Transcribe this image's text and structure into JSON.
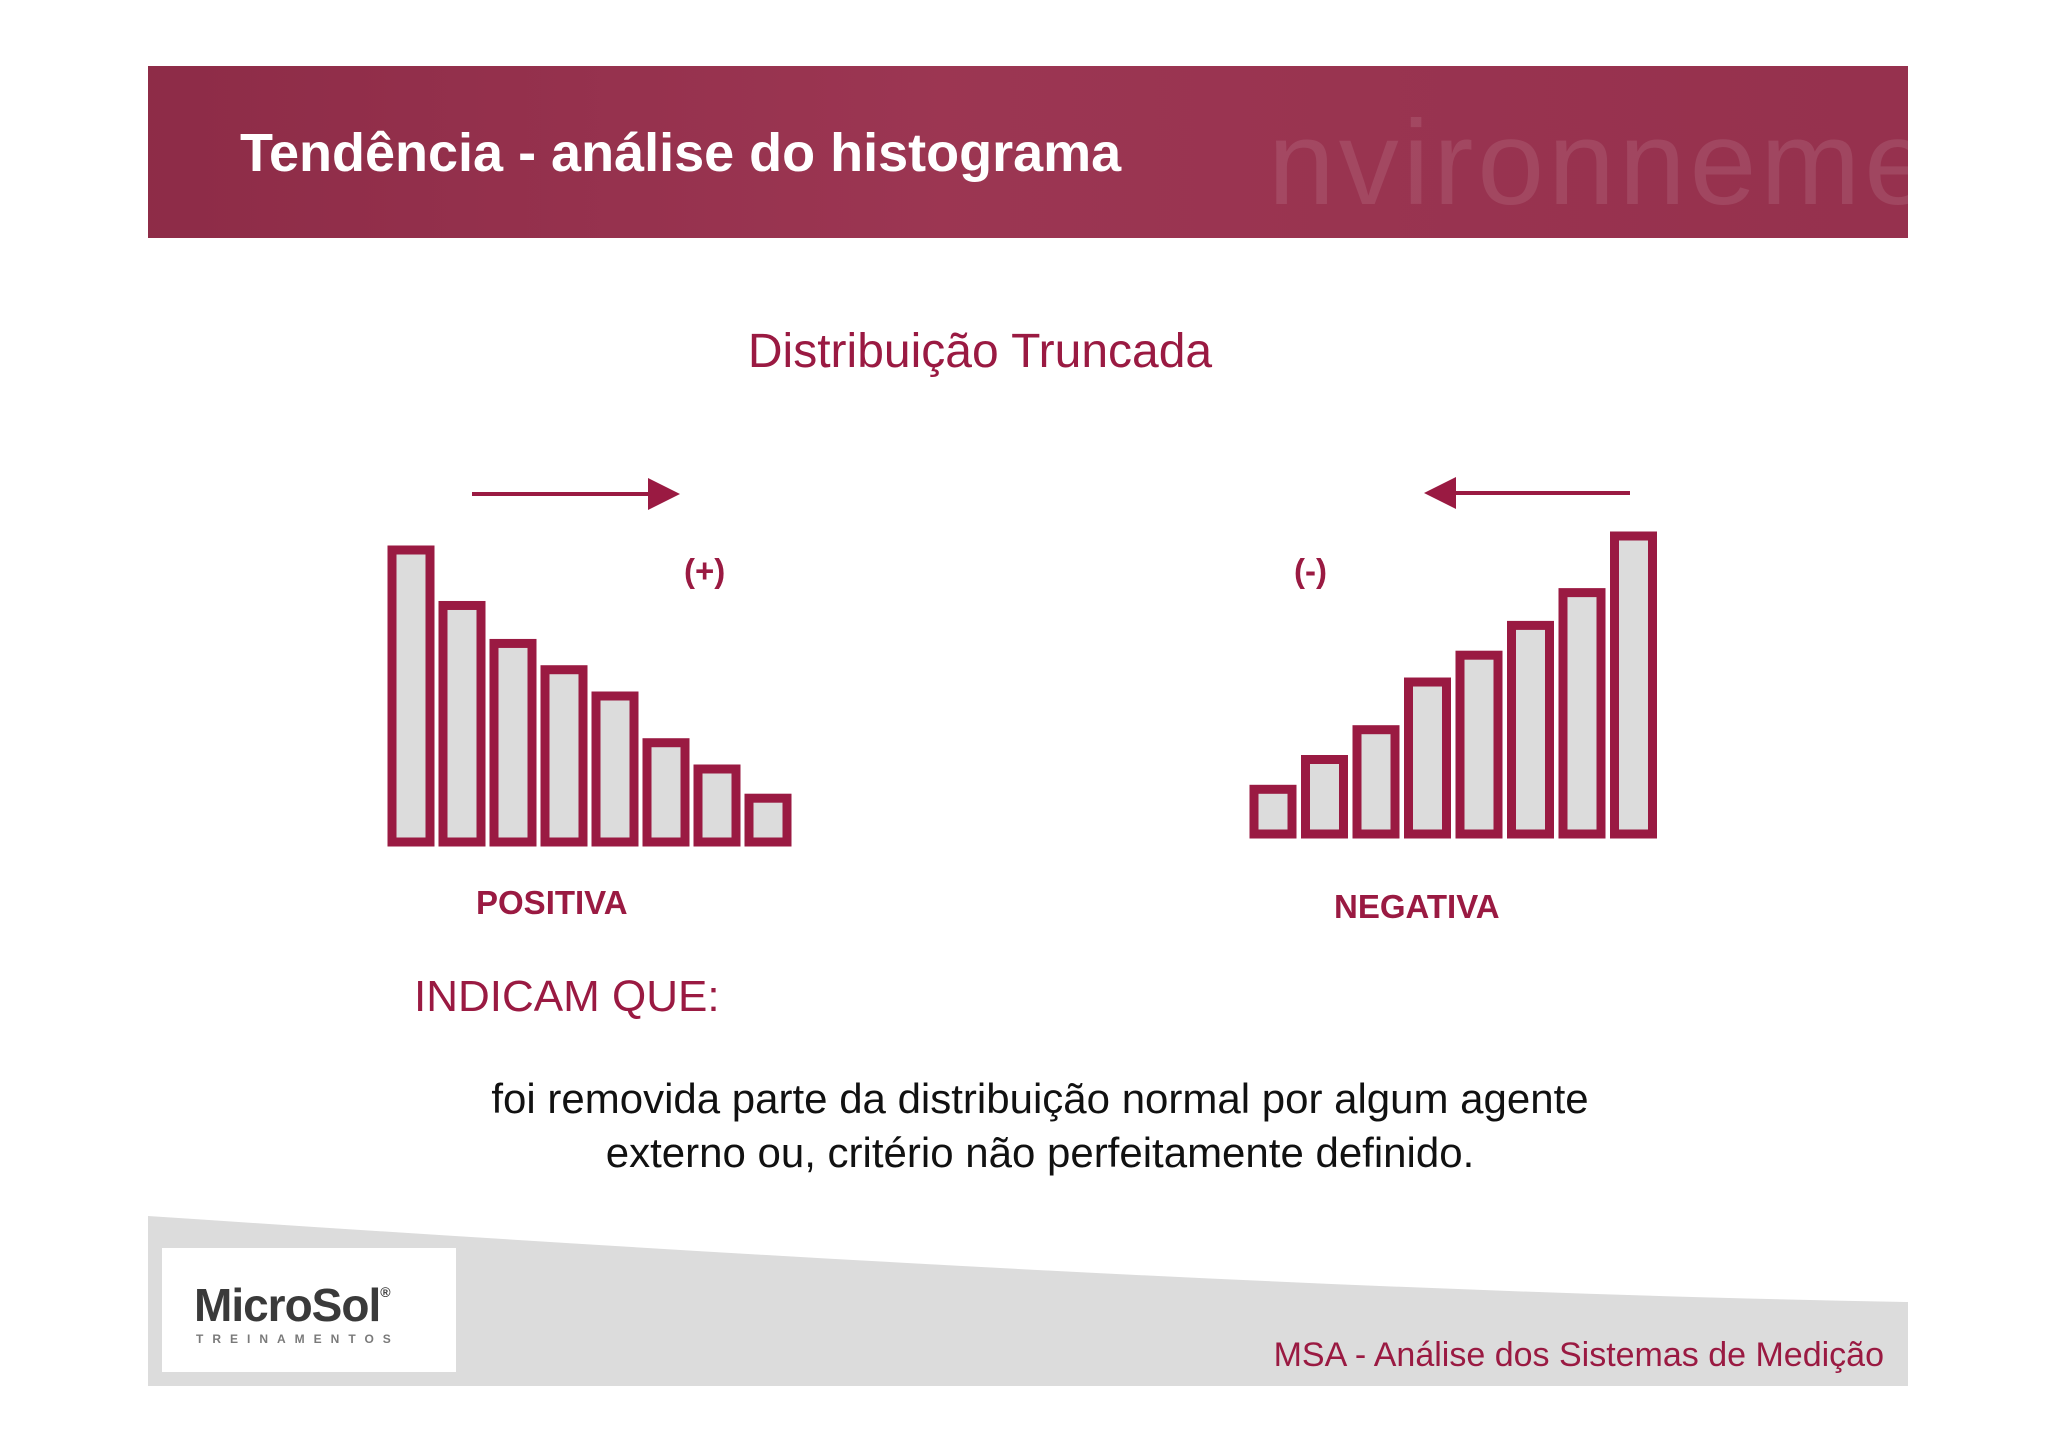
{
  "header": {
    "title": "Tendência - análise do histograma"
  },
  "subtitle": "Distribuição Truncada",
  "chart_data": [
    {
      "type": "bar",
      "name": "POSITIVA",
      "sign": "(+)",
      "arrow": "right",
      "values": [
        100,
        81,
        68,
        59,
        50,
        34,
        25,
        15
      ]
    },
    {
      "type": "bar",
      "name": "NEGATIVA",
      "sign": "(-)",
      "arrow": "left",
      "values": [
        15,
        25,
        35,
        51,
        60,
        70,
        81,
        100
      ]
    }
  ],
  "indicam": "INDICAM QUE:",
  "body": {
    "line1": "foi removida parte da distribuição normal por algum agente",
    "line2": "externo ou, critério não perfeitamente definido."
  },
  "footer": {
    "logo_name": "MicroSol",
    "logo_reg": "®",
    "logo_sub": "TREINAMENTOS",
    "caption": "MSA - Análise dos Sistemas de Medição"
  },
  "colors": {
    "accent": "#9a1a42",
    "bar_fill": "#dcdcdc",
    "header_bg": "#993350"
  }
}
